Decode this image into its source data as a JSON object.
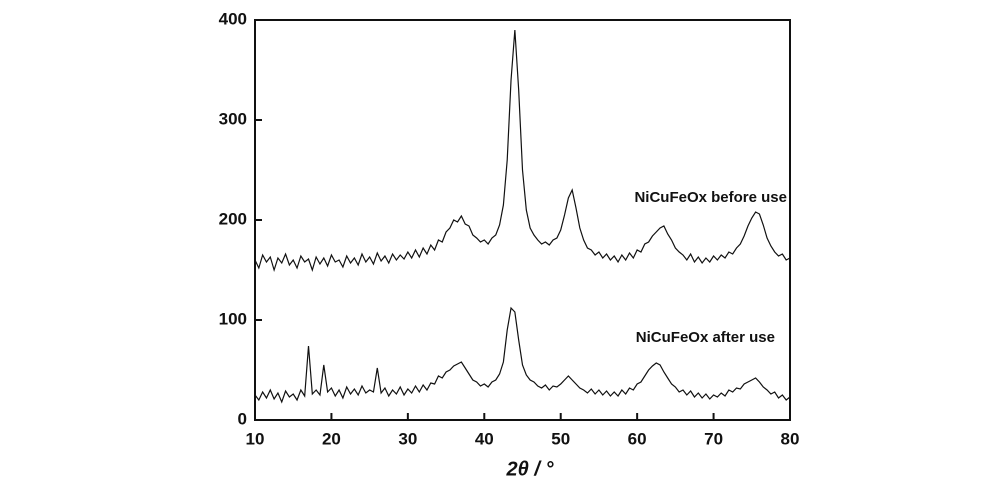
{
  "chart_data": {
    "type": "line",
    "xlabel": "2θ / °",
    "xlim": [
      10,
      80
    ],
    "ylim": [
      0,
      400
    ],
    "xticks": [
      10,
      20,
      30,
      40,
      50,
      60,
      70,
      80
    ],
    "yticks": [
      0,
      100,
      200,
      300,
      400
    ],
    "x": [
      10,
      10.5,
      11,
      11.5,
      12,
      12.5,
      13,
      13.5,
      14,
      14.5,
      15,
      15.5,
      16,
      16.5,
      17,
      17.5,
      18,
      18.5,
      19,
      19.5,
      20,
      20.5,
      21,
      21.5,
      22,
      22.5,
      23,
      23.5,
      24,
      24.5,
      25,
      25.5,
      26,
      26.5,
      27,
      27.5,
      28,
      28.5,
      29,
      29.5,
      30,
      30.5,
      31,
      31.5,
      32,
      32.5,
      33,
      33.5,
      34,
      34.5,
      35,
      35.5,
      36,
      36.5,
      37,
      37.5,
      38,
      38.5,
      39,
      39.5,
      40,
      40.5,
      41,
      41.5,
      42,
      42.5,
      43,
      43.5,
      44,
      44.5,
      45,
      45.5,
      46,
      46.5,
      47,
      47.5,
      48,
      48.5,
      49,
      49.5,
      50,
      50.5,
      51,
      51.5,
      52,
      52.5,
      53,
      53.5,
      54,
      54.5,
      55,
      55.5,
      56,
      56.5,
      57,
      57.5,
      58,
      58.5,
      59,
      59.5,
      60,
      60.5,
      61,
      61.5,
      62,
      62.5,
      63,
      63.5,
      64,
      64.5,
      65,
      65.5,
      66,
      66.5,
      67,
      67.5,
      68,
      68.5,
      69,
      69.5,
      70,
      70.5,
      71,
      71.5,
      72,
      72.5,
      73,
      73.5,
      74,
      74.5,
      75,
      75.5,
      76,
      76.5,
      77,
      77.5,
      78,
      78.5,
      79,
      79.5,
      80
    ],
    "series": [
      {
        "name": "NiCuFeOx before use",
        "color": "#111111",
        "values": [
          160,
          152,
          165,
          158,
          163,
          150,
          162,
          157,
          166,
          155,
          160,
          152,
          164,
          158,
          161,
          150,
          163,
          156,
          162,
          154,
          165,
          158,
          160,
          153,
          164,
          157,
          162,
          155,
          166,
          158,
          163,
          156,
          167,
          159,
          164,
          157,
          166,
          160,
          165,
          161,
          168,
          162,
          170,
          163,
          172,
          166,
          175,
          170,
          180,
          178,
          188,
          192,
          200,
          198,
          204,
          196,
          194,
          185,
          182,
          178,
          180,
          176,
          182,
          185,
          195,
          215,
          260,
          340,
          390,
          330,
          250,
          210,
          192,
          185,
          180,
          176,
          178,
          175,
          180,
          182,
          190,
          205,
          222,
          230,
          212,
          192,
          180,
          172,
          170,
          165,
          168,
          162,
          166,
          160,
          164,
          158,
          165,
          160,
          167,
          162,
          170,
          168,
          176,
          178,
          184,
          188,
          192,
          194,
          186,
          180,
          172,
          168,
          165,
          160,
          166,
          158,
          163,
          157,
          162,
          158,
          164,
          160,
          165,
          162,
          168,
          166,
          172,
          176,
          184,
          194,
          202,
          208,
          206,
          195,
          182,
          174,
          168,
          164,
          166,
          160,
          162
        ]
      },
      {
        "name": "NiCuFeOx after use",
        "color": "#111111",
        "values": [
          25,
          20,
          28,
          22,
          30,
          21,
          27,
          18,
          29,
          23,
          26,
          20,
          30,
          24,
          74,
          26,
          30,
          25,
          55,
          28,
          32,
          24,
          30,
          22,
          33,
          26,
          31,
          25,
          34,
          27,
          30,
          28,
          52,
          27,
          32,
          24,
          30,
          26,
          33,
          25,
          31,
          27,
          34,
          28,
          35,
          30,
          37,
          36,
          44,
          42,
          48,
          50,
          54,
          56,
          58,
          52,
          46,
          40,
          38,
          34,
          36,
          33,
          38,
          40,
          46,
          58,
          90,
          112,
          108,
          80,
          55,
          45,
          40,
          38,
          34,
          32,
          35,
          30,
          34,
          33,
          36,
          40,
          44,
          40,
          36,
          32,
          30,
          27,
          31,
          26,
          30,
          25,
          29,
          24,
          28,
          24,
          30,
          26,
          32,
          30,
          36,
          38,
          44,
          50,
          54,
          57,
          55,
          48,
          42,
          36,
          33,
          28,
          30,
          25,
          29,
          23,
          27,
          22,
          26,
          21,
          25,
          23,
          27,
          24,
          30,
          28,
          32,
          31,
          36,
          38,
          40,
          42,
          38,
          33,
          30,
          26,
          28,
          22,
          25,
          20,
          23
        ]
      }
    ]
  }
}
